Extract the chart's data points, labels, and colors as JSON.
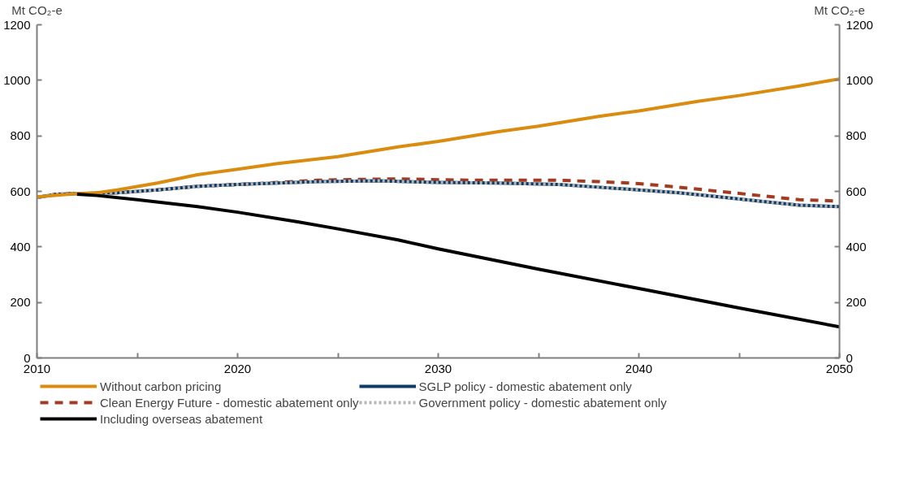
{
  "chart_data": {
    "type": "line",
    "ylabel": "Mt CO₂-e",
    "y2label": "Mt CO₂-e",
    "xlim": [
      2010,
      2050
    ],
    "xticks": [
      2010,
      {
        "value": 2015,
        "label": null
      },
      2020,
      {
        "value": 2025,
        "label": null
      },
      2030,
      {
        "value": 2035,
        "label": null
      },
      2040,
      {
        "value": 2045,
        "label": null
      },
      2050
    ],
    "ylim": [
      0,
      1200
    ],
    "yticks": [
      0,
      200,
      400,
      600,
      800,
      1000,
      1200
    ],
    "y2lim": [
      0,
      1200
    ],
    "y2ticks": [
      0,
      200,
      400,
      600,
      800,
      1000,
      1200
    ],
    "grid": false,
    "legend": "bottom",
    "series": [
      {
        "name": "Without carbon pricing",
        "color": "#d98c10",
        "line_style": "solid",
        "x": [
          2010,
          2012,
          2013,
          2014,
          2016,
          2018,
          2020,
          2022,
          2025,
          2028,
          2030,
          2033,
          2035,
          2038,
          2040,
          2043,
          2045,
          2048,
          2050
        ],
        "values": [
          580,
          592,
          595,
          605,
          630,
          660,
          680,
          700,
          725,
          760,
          780,
          815,
          835,
          870,
          890,
          925,
          945,
          980,
          1005
        ]
      },
      {
        "name": "Clean Energy Future - domestic abatement only",
        "color": "#a33a22",
        "line_style": "dashed",
        "x": [
          2010,
          2011,
          2012,
          2014,
          2016,
          2018,
          2020,
          2022,
          2024,
          2026,
          2028,
          2030,
          2032,
          2034,
          2036,
          2038,
          2040,
          2042,
          2044,
          2046,
          2048,
          2050
        ],
        "values": [
          578,
          590,
          592,
          595,
          605,
          618,
          625,
          632,
          640,
          643,
          645,
          642,
          640,
          640,
          640,
          635,
          628,
          615,
          600,
          585,
          570,
          565
        ]
      },
      {
        "name": "Including overseas abatement",
        "color": "#000000",
        "line_style": "solid",
        "x": [
          2012,
          2013,
          2015,
          2018,
          2020,
          2023,
          2025,
          2028,
          2030,
          2035,
          2040,
          2045,
          2050
        ],
        "values": [
          590,
          585,
          570,
          545,
          525,
          490,
          465,
          425,
          393,
          320,
          250,
          180,
          112
        ]
      },
      {
        "name": "SGLP policy - domestic abatement only",
        "color": "#0d3a66",
        "line_style": "solid",
        "x": [
          2010,
          2011,
          2012,
          2014,
          2016,
          2018,
          2020,
          2022,
          2024,
          2027,
          2030,
          2033,
          2036,
          2038,
          2040,
          2042,
          2044,
          2046,
          2048,
          2050
        ],
        "values": [
          578,
          590,
          592,
          595,
          605,
          618,
          625,
          630,
          635,
          638,
          632,
          630,
          625,
          615,
          605,
          595,
          580,
          565,
          550,
          545
        ]
      },
      {
        "name": "Government policy - domestic abatement only",
        "color": "#b5b5b5",
        "line_style": "dotted",
        "x": [
          2010,
          2011,
          2012,
          2014,
          2016,
          2018,
          2020,
          2022,
          2024,
          2027,
          2030,
          2033,
          2036,
          2038,
          2040,
          2042,
          2044,
          2046,
          2048,
          2050
        ],
        "values": [
          578,
          590,
          592,
          595,
          605,
          618,
          625,
          630,
          635,
          638,
          632,
          630,
          625,
          615,
          605,
          595,
          580,
          565,
          550,
          545
        ]
      }
    ]
  }
}
